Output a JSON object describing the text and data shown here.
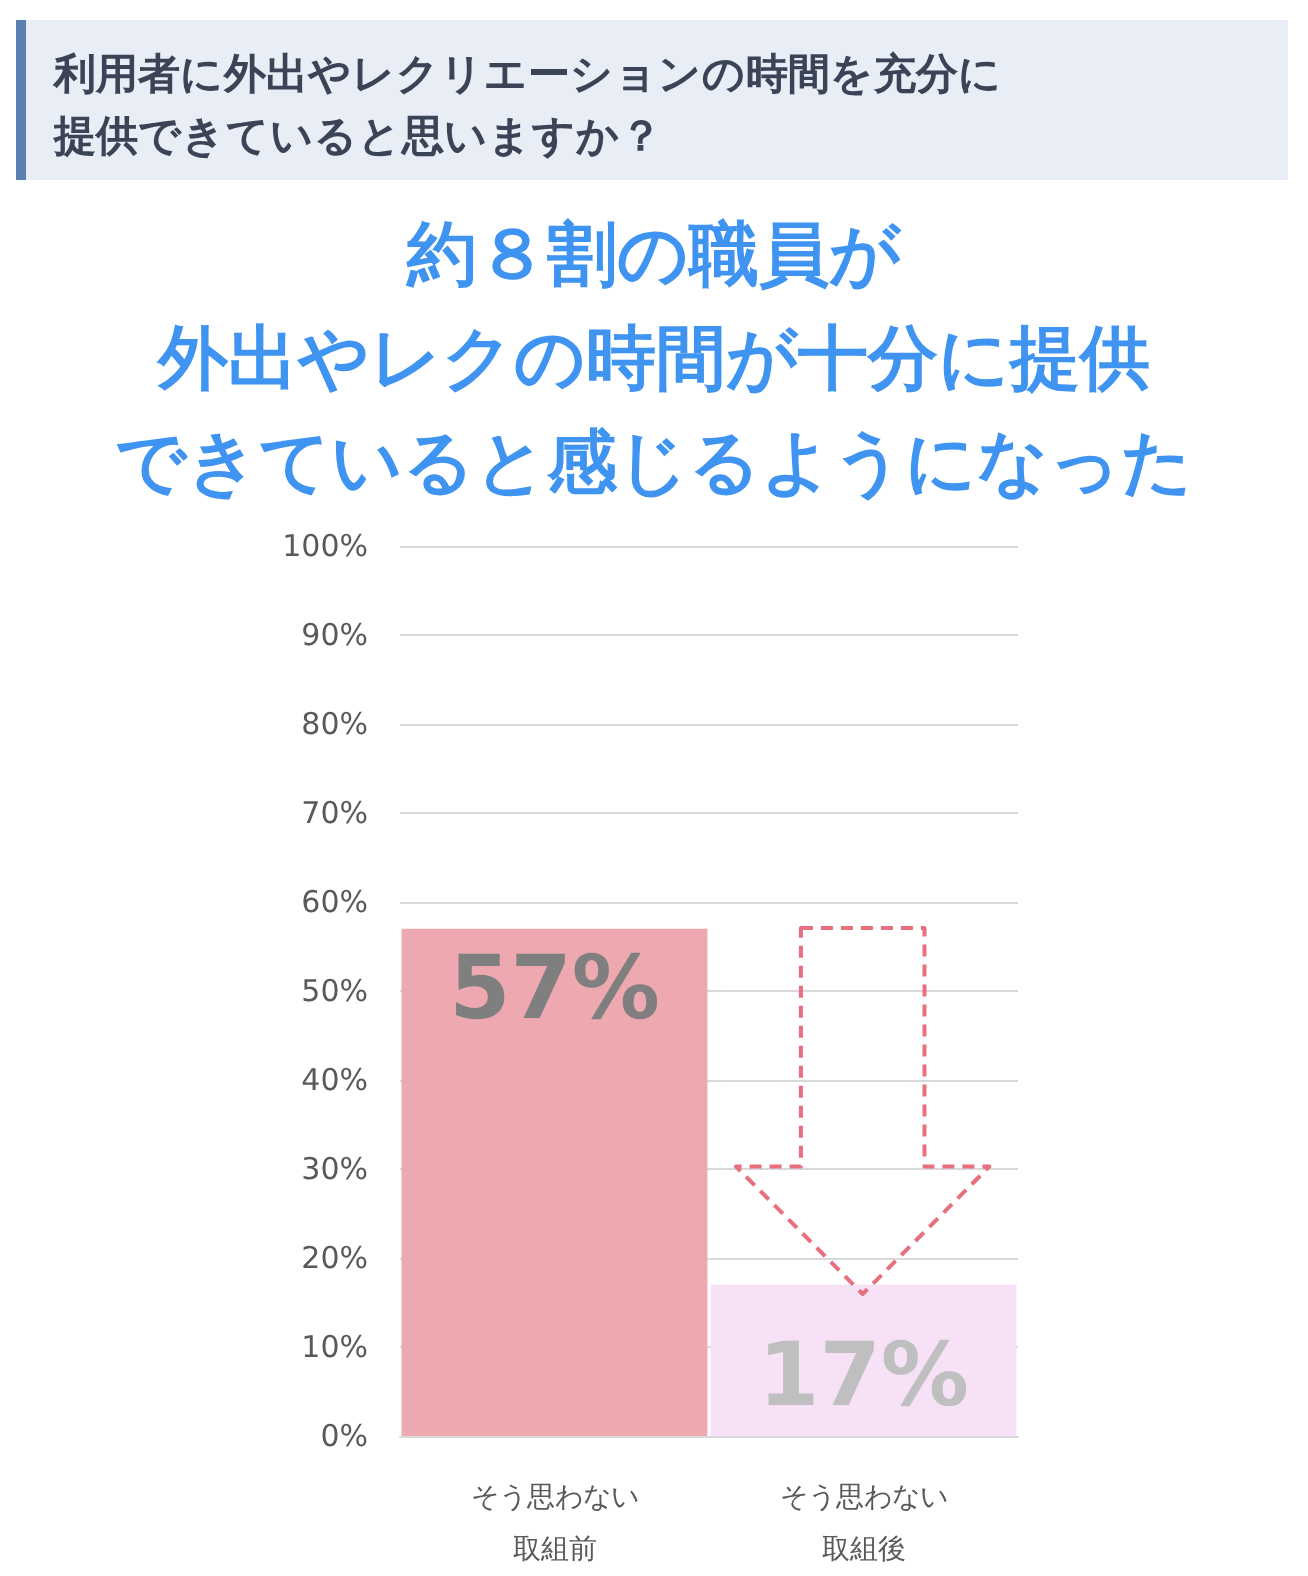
{
  "chart_data": {
    "type": "bar",
    "title": "利用者に外出やレクリエーションの時間を充分に提供できていると思いますか？",
    "subtitle": "約８割の職員が外出やレクの時間が十分に提供できていると感じるようになった",
    "categories": [
      "そう思わない取組前",
      "そう思わない取組後"
    ],
    "values": [
      57,
      17
    ],
    "colors": [
      "#eea8b0",
      "#f7e1f7"
    ],
    "ylim": [
      0,
      100
    ],
    "yticks": [
      {
        "value": 0,
        "label": "0%"
      },
      {
        "value": 10,
        "label": "10%"
      },
      {
        "value": 20,
        "label": "20%"
      },
      {
        "value": 30,
        "label": "30%"
      },
      {
        "value": 40,
        "label": "40%"
      },
      {
        "value": 50,
        "label": "50%"
      },
      {
        "value": 60,
        "label": "60%"
      },
      {
        "value": 70,
        "label": "70%"
      },
      {
        "value": 80,
        "label": "80%"
      },
      {
        "value": 90,
        "label": "90%"
      },
      {
        "value": 100,
        "label": "100%"
      }
    ],
    "grid": "y",
    "value_labels": [
      "57%",
      "17%"
    ]
  }
}
